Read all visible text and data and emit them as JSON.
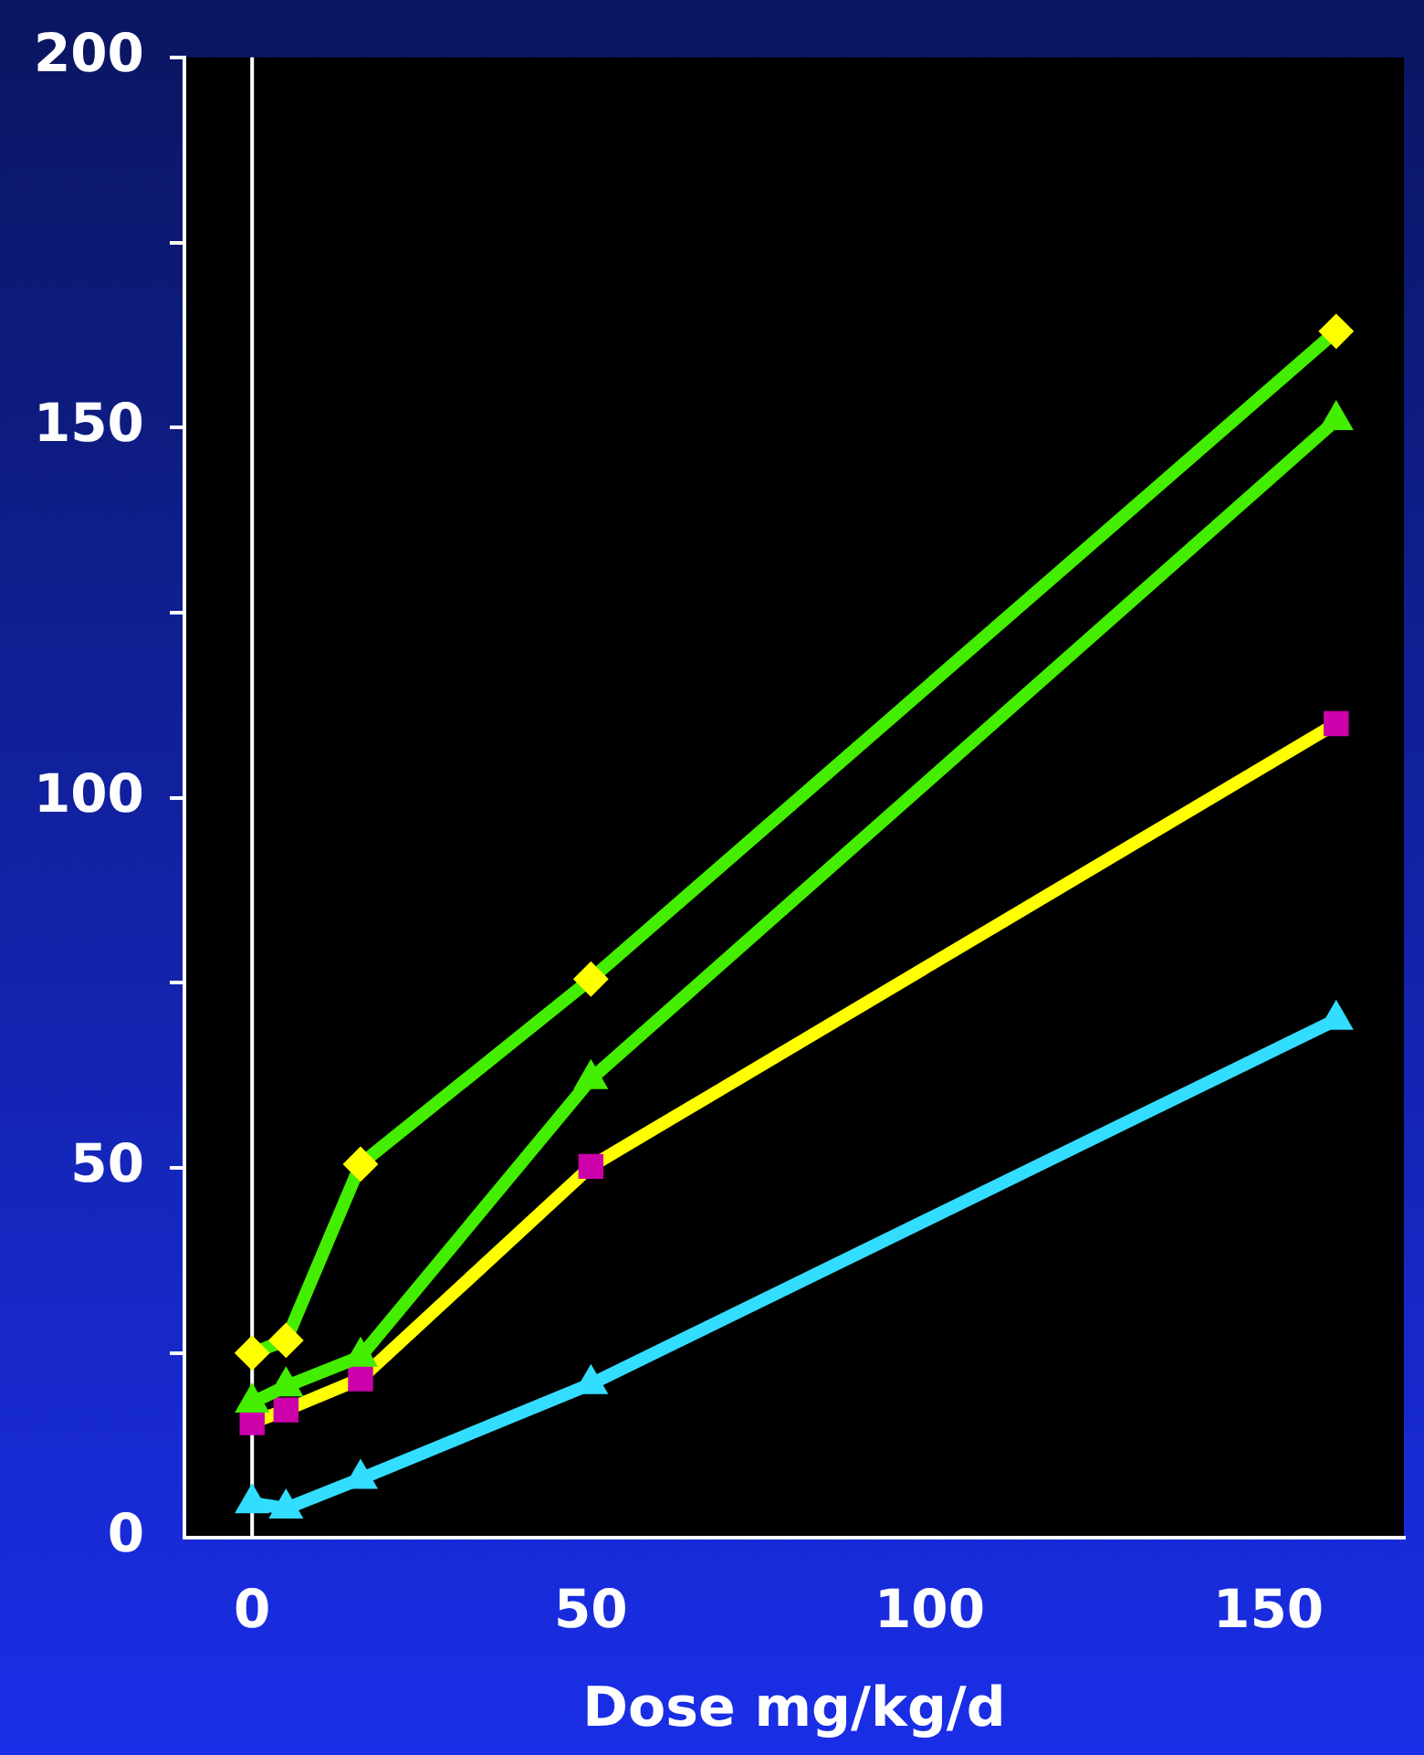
{
  "chart_data": {
    "type": "line",
    "xlabel": "Dose mg/kg/d",
    "x": [
      0,
      5,
      16,
      50,
      160
    ],
    "series": [
      {
        "color": "#44ee00",
        "marker": "diamond",
        "colors": [
          "#ffff00",
          "#ffff00",
          "#ffff00",
          "#ffff00",
          "#ffff00"
        ],
        "values": [
          25,
          26.7,
          50.5,
          75.5,
          163
        ]
      },
      {
        "color": "#44ee00",
        "marker": "triangle",
        "colors": [
          "#44ee00",
          "#44ee00",
          "#44ee00",
          "#44ee00",
          "#44ee00"
        ],
        "values": [
          18.3,
          20.5,
          24.5,
          62,
          151
        ]
      },
      {
        "color": "#ffff00",
        "marker": "square",
        "colors": [
          "#cc00aa",
          "#cc00aa",
          "#cc00aa",
          "#cc00aa",
          "#cc00aa"
        ],
        "values": [
          15.6,
          17.3,
          21.5,
          50.2,
          110
        ]
      },
      {
        "color": "#33ddff",
        "marker": "triangle",
        "colors": [
          "#33ddff",
          "#33ddff",
          "#33ddff",
          "#33ddff",
          "#33ddff"
        ],
        "values": [
          4.7,
          4,
          8,
          20.8,
          70
        ]
      }
    ],
    "xlim": [
      -10,
      170
    ],
    "xticks": [
      0,
      50,
      100,
      150
    ],
    "ylim": [
      0,
      200
    ],
    "yticks": [
      0,
      {
        "value": 25,
        "label": null
      },
      50,
      {
        "value": 75,
        "label": null
      },
      100,
      {
        "value": 125,
        "label": null
      },
      150,
      {
        "value": 175,
        "label": null
      },
      200
    ],
    "ref_lines": [
      {
        "axis": "x",
        "value": 0,
        "color": "#ffffff"
      }
    ],
    "grid": false,
    "legend": false,
    "line_style": "solid"
  }
}
